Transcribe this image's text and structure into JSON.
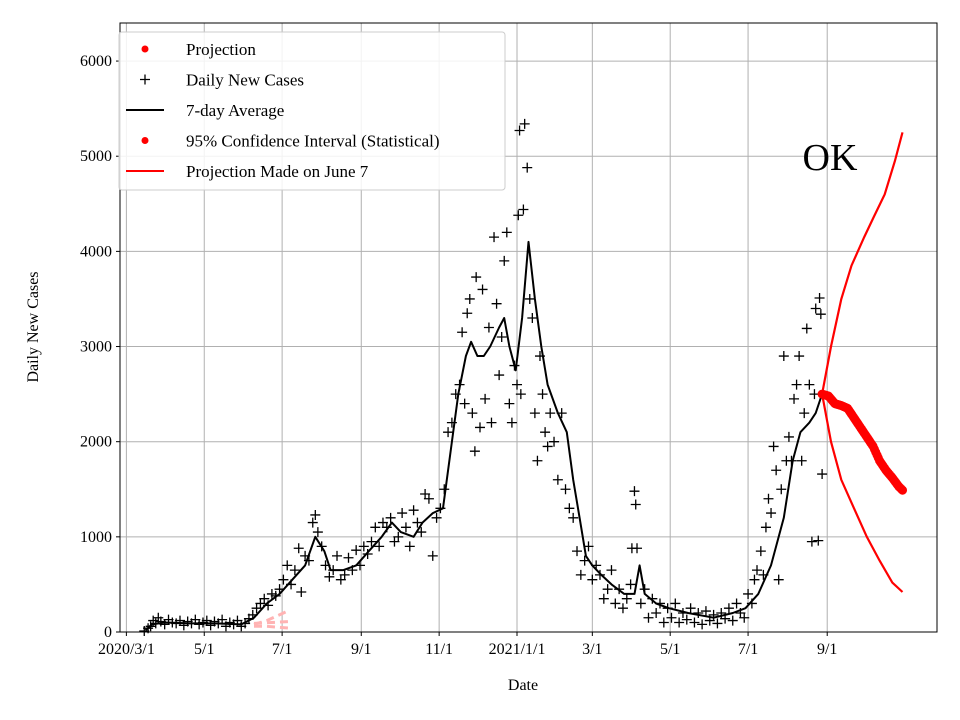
{
  "chart_data": {
    "type": "line",
    "title": "OK",
    "xlabel": "Date",
    "ylabel": "Daily New Cases",
    "x_unit": "days since 2020/3/1",
    "xlim": [
      -5,
      635
    ],
    "ylim": [
      0,
      6400
    ],
    "grid": true,
    "legend_position": "top-left",
    "x_ticks": [
      {
        "day": 0,
        "label": "2020/3/1"
      },
      {
        "day": 61,
        "label": "5/1"
      },
      {
        "day": 122,
        "label": "7/1"
      },
      {
        "day": 184,
        "label": "9/1"
      },
      {
        "day": 245,
        "label": "11/1"
      },
      {
        "day": 306,
        "label": "2021/1/1"
      },
      {
        "day": 365,
        "label": "3/1"
      },
      {
        "day": 426,
        "label": "5/1"
      },
      {
        "day": 487,
        "label": "7/1"
      },
      {
        "day": 549,
        "label": "9/1"
      }
    ],
    "y_ticks": [
      0,
      1000,
      2000,
      3000,
      4000,
      5000,
      6000
    ],
    "legend": [
      {
        "label": "Projection",
        "marker": "dot",
        "color": "#ff0000"
      },
      {
        "label": "Daily New Cases",
        "marker": "plus",
        "color": "#000000"
      },
      {
        "label": "7-day Average",
        "marker": "line",
        "color": "#000000"
      },
      {
        "label": "95% Confidence Interval (Statistical)",
        "marker": "dot",
        "color": "#ff0000"
      },
      {
        "label": "Projection Made on June 7",
        "marker": "line",
        "color": "#ff0000"
      }
    ],
    "series": {
      "seven_day_average": [
        [
          15,
          20
        ],
        [
          20,
          80
        ],
        [
          30,
          100
        ],
        [
          50,
          90
        ],
        [
          70,
          90
        ],
        [
          90,
          80
        ],
        [
          100,
          150
        ],
        [
          110,
          300
        ],
        [
          120,
          400
        ],
        [
          130,
          550
        ],
        [
          140,
          700
        ],
        [
          148,
          1000
        ],
        [
          155,
          850
        ],
        [
          160,
          650
        ],
        [
          170,
          650
        ],
        [
          180,
          700
        ],
        [
          190,
          850
        ],
        [
          200,
          1000
        ],
        [
          208,
          1150
        ],
        [
          215,
          1050
        ],
        [
          225,
          1000
        ],
        [
          232,
          1150
        ],
        [
          240,
          1250
        ],
        [
          248,
          1300
        ],
        [
          255,
          2000
        ],
        [
          260,
          2500
        ],
        [
          266,
          2900
        ],
        [
          270,
          3050
        ],
        [
          275,
          2900
        ],
        [
          280,
          2900
        ],
        [
          285,
          3000
        ],
        [
          292,
          3200
        ],
        [
          296,
          3300
        ],
        [
          300,
          3000
        ],
        [
          305,
          2750
        ],
        [
          310,
          3300
        ],
        [
          315,
          4100
        ],
        [
          320,
          3500
        ],
        [
          325,
          3000
        ],
        [
          330,
          2600
        ],
        [
          338,
          2300
        ],
        [
          345,
          2100
        ],
        [
          350,
          1600
        ],
        [
          355,
          1200
        ],
        [
          360,
          800
        ],
        [
          365,
          700
        ],
        [
          372,
          600
        ],
        [
          380,
          500
        ],
        [
          390,
          400
        ],
        [
          398,
          400
        ],
        [
          402,
          700
        ],
        [
          406,
          400
        ],
        [
          415,
          300
        ],
        [
          425,
          250
        ],
        [
          440,
          200
        ],
        [
          460,
          150
        ],
        [
          475,
          200
        ],
        [
          485,
          250
        ],
        [
          495,
          400
        ],
        [
          505,
          700
        ],
        [
          515,
          1200
        ],
        [
          522,
          1800
        ],
        [
          528,
          2100
        ],
        [
          535,
          2200
        ],
        [
          540,
          2300
        ],
        [
          545,
          2500
        ]
      ],
      "daily_new_cases": [
        [
          14,
          10
        ],
        [
          17,
          40
        ],
        [
          19,
          60
        ],
        [
          21,
          120
        ],
        [
          23,
          90
        ],
        [
          25,
          150
        ],
        [
          27,
          110
        ],
        [
          30,
          80
        ],
        [
          33,
          130
        ],
        [
          36,
          100
        ],
        [
          39,
          90
        ],
        [
          42,
          120
        ],
        [
          45,
          70
        ],
        [
          48,
          110
        ],
        [
          51,
          90
        ],
        [
          54,
          130
        ],
        [
          57,
          80
        ],
        [
          60,
          100
        ],
        [
          63,
          120
        ],
        [
          66,
          70
        ],
        [
          69,
          110
        ],
        [
          72,
          90
        ],
        [
          75,
          130
        ],
        [
          78,
          60
        ],
        [
          81,
          100
        ],
        [
          84,
          80
        ],
        [
          87,
          120
        ],
        [
          90,
          60
        ],
        [
          93,
          90
        ],
        [
          96,
          140
        ],
        [
          99,
          180
        ],
        [
          102,
          250
        ],
        [
          105,
          300
        ],
        [
          108,
          350
        ],
        [
          111,
          280
        ],
        [
          114,
          400
        ],
        [
          117,
          380
        ],
        [
          120,
          450
        ],
        [
          123,
          550
        ],
        [
          126,
          700
        ],
        [
          129,
          500
        ],
        [
          132,
          650
        ],
        [
          135,
          880
        ],
        [
          137,
          420
        ],
        [
          140,
          800
        ],
        [
          143,
          750
        ],
        [
          146,
          1150
        ],
        [
          148,
          1230
        ],
        [
          150,
          1050
        ],
        [
          153,
          900
        ],
        [
          156,
          700
        ],
        [
          159,
          580
        ],
        [
          162,
          650
        ],
        [
          165,
          800
        ],
        [
          168,
          550
        ],
        [
          171,
          600
        ],
        [
          174,
          780
        ],
        [
          177,
          650
        ],
        [
          180,
          860
        ],
        [
          183,
          700
        ],
        [
          186,
          900
        ],
        [
          189,
          820
        ],
        [
          192,
          950
        ],
        [
          195,
          1100
        ],
        [
          198,
          900
        ],
        [
          201,
          1150
        ],
        [
          204,
          1100
        ],
        [
          207,
          1200
        ],
        [
          210,
          950
        ],
        [
          213,
          1000
        ],
        [
          216,
          1250
        ],
        [
          219,
          1100
        ],
        [
          222,
          900
        ],
        [
          225,
          1280
        ],
        [
          228,
          1150
        ],
        [
          231,
          1050
        ],
        [
          234,
          1450
        ],
        [
          237,
          1400
        ],
        [
          240,
          800
        ],
        [
          243,
          1200
        ],
        [
          246,
          1300
        ],
        [
          249,
          1500
        ],
        [
          252,
          2100
        ],
        [
          255,
          2200
        ],
        [
          258,
          2500
        ],
        [
          261,
          2600
        ],
        [
          263,
          3150
        ],
        [
          265,
          2400
        ],
        [
          267,
          3350
        ],
        [
          269,
          3500
        ],
        [
          271,
          2300
        ],
        [
          273,
          1900
        ],
        [
          274,
          3730
        ],
        [
          277,
          2150
        ],
        [
          279,
          3600
        ],
        [
          281,
          2450
        ],
        [
          284,
          3200
        ],
        [
          286,
          2200
        ],
        [
          288,
          4150
        ],
        [
          290,
          3450
        ],
        [
          292,
          2700
        ],
        [
          294,
          3100
        ],
        [
          296,
          3900
        ],
        [
          298,
          4200
        ],
        [
          300,
          2400
        ],
        [
          302,
          2200
        ],
        [
          304,
          2800
        ],
        [
          306,
          2600
        ],
        [
          307,
          4380
        ],
        [
          308,
          5270
        ],
        [
          309,
          2500
        ],
        [
          311,
          4440
        ],
        [
          312,
          5340
        ],
        [
          314,
          4880
        ],
        [
          316,
          3500
        ],
        [
          318,
          3300
        ],
        [
          320,
          2300
        ],
        [
          322,
          1800
        ],
        [
          324,
          2900
        ],
        [
          326,
          2500
        ],
        [
          328,
          2100
        ],
        [
          330,
          1950
        ],
        [
          332,
          2300
        ],
        [
          335,
          2000
        ],
        [
          338,
          1600
        ],
        [
          341,
          2300
        ],
        [
          344,
          1500
        ],
        [
          347,
          1300
        ],
        [
          350,
          1200
        ],
        [
          353,
          850
        ],
        [
          356,
          600
        ],
        [
          359,
          750
        ],
        [
          362,
          900
        ],
        [
          365,
          550
        ],
        [
          368,
          700
        ],
        [
          371,
          600
        ],
        [
          374,
          350
        ],
        [
          377,
          450
        ],
        [
          380,
          650
        ],
        [
          383,
          300
        ],
        [
          386,
          450
        ],
        [
          389,
          250
        ],
        [
          392,
          350
        ],
        [
          395,
          500
        ],
        [
          396,
          880
        ],
        [
          398,
          1480
        ],
        [
          399,
          1340
        ],
        [
          400,
          880
        ],
        [
          403,
          300
        ],
        [
          406,
          450
        ],
        [
          409,
          150
        ],
        [
          412,
          350
        ],
        [
          415,
          200
        ],
        [
          418,
          300
        ],
        [
          421,
          100
        ],
        [
          424,
          250
        ],
        [
          427,
          150
        ],
        [
          430,
          300
        ],
        [
          433,
          100
        ],
        [
          436,
          200
        ],
        [
          439,
          130
        ],
        [
          442,
          250
        ],
        [
          445,
          100
        ],
        [
          448,
          200
        ],
        [
          451,
          80
        ],
        [
          454,
          220
        ],
        [
          457,
          120
        ],
        [
          460,
          180
        ],
        [
          463,
          90
        ],
        [
          466,
          200
        ],
        [
          469,
          140
        ],
        [
          472,
          250
        ],
        [
          475,
          120
        ],
        [
          478,
          300
        ],
        [
          481,
          200
        ],
        [
          484,
          150
        ],
        [
          487,
          400
        ],
        [
          490,
          300
        ],
        [
          492,
          550
        ],
        [
          494,
          650
        ],
        [
          497,
          850
        ],
        [
          499,
          600
        ],
        [
          501,
          1100
        ],
        [
          503,
          1400
        ],
        [
          505,
          1250
        ],
        [
          507,
          1950
        ],
        [
          509,
          1700
        ],
        [
          511,
          550
        ],
        [
          513,
          1500
        ],
        [
          515,
          2900
        ],
        [
          517,
          1800
        ],
        [
          519,
          2050
        ],
        [
          521,
          1800
        ],
        [
          523,
          2450
        ],
        [
          525,
          2600
        ],
        [
          527,
          2900
        ],
        [
          529,
          1800
        ],
        [
          531,
          2300
        ],
        [
          533,
          3190
        ],
        [
          535,
          2600
        ],
        [
          537,
          950
        ],
        [
          539,
          2500
        ],
        [
          540,
          3400
        ],
        [
          542,
          960
        ],
        [
          543,
          3510
        ],
        [
          544,
          3340
        ],
        [
          545,
          1660
        ]
      ],
      "projection": [
        [
          545,
          2500
        ],
        [
          550,
          2480
        ],
        [
          555,
          2400
        ],
        [
          560,
          2380
        ],
        [
          565,
          2350
        ],
        [
          570,
          2250
        ],
        [
          575,
          2150
        ],
        [
          580,
          2050
        ],
        [
          585,
          1950
        ],
        [
          590,
          1800
        ],
        [
          595,
          1700
        ],
        [
          600,
          1620
        ],
        [
          605,
          1530
        ],
        [
          608,
          1490
        ]
      ],
      "ci_upper": [
        [
          545,
          2500
        ],
        [
          552,
          3000
        ],
        [
          560,
          3500
        ],
        [
          568,
          3850
        ],
        [
          578,
          4150
        ],
        [
          585,
          4350
        ],
        [
          594,
          4600
        ],
        [
          602,
          4950
        ],
        [
          608,
          5250
        ]
      ],
      "ci_lower": [
        [
          545,
          2500
        ],
        [
          552,
          2000
        ],
        [
          560,
          1600
        ],
        [
          570,
          1300
        ],
        [
          580,
          1000
        ],
        [
          590,
          750
        ],
        [
          600,
          520
        ],
        [
          608,
          420
        ]
      ],
      "earlier_projection_band": [
        [
          [
            100,
            80
          ],
          [
            110,
            120
          ],
          [
            128,
            230
          ]
        ],
        [
          [
            100,
            60
          ],
          [
            110,
            60
          ],
          [
            128,
            40
          ]
        ],
        [
          [
            100,
            90
          ],
          [
            114,
            100
          ],
          [
            128,
            110
          ]
        ]
      ]
    },
    "colors": {
      "projection": "#ff0000",
      "ci": "#ff0000",
      "daily": "#000000",
      "average": "#000000",
      "earlier": "#ffb3b3"
    }
  }
}
